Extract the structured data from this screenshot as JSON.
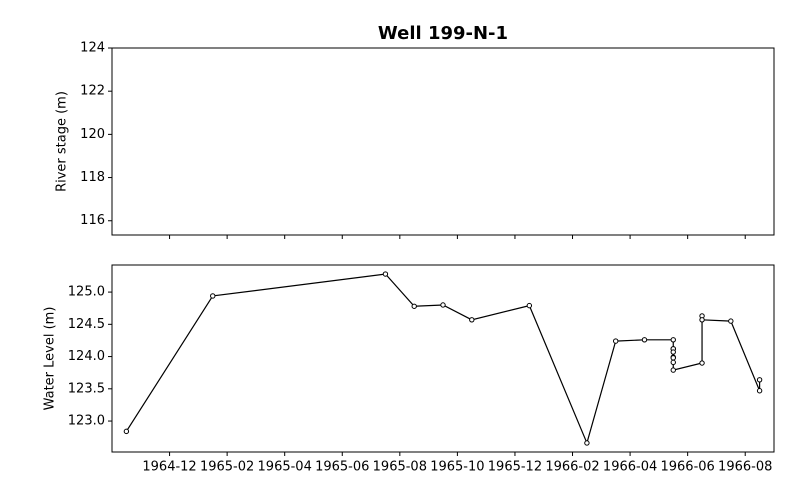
{
  "chart_data": [
    {
      "type": "line",
      "title": "Well 199-N-1",
      "ylabel": "River stage (m)",
      "ylim": [
        115.34,
        124
      ],
      "yticks": [
        116,
        118,
        120,
        122,
        124
      ],
      "series": []
    },
    {
      "type": "line",
      "ylabel": "Water Level (m)",
      "xlim": [
        "1964-10",
        "1966-09"
      ],
      "xticks": [
        "1964-12",
        "1965-02",
        "1965-04",
        "1965-06",
        "1965-08",
        "1965-10",
        "1965-12",
        "1966-02",
        "1966-04",
        "1966-06",
        "1966-08"
      ],
      "ylim": [
        122.52,
        125.42
      ],
      "yticks": [
        {
          "value": 123,
          "label": "123.0"
        },
        {
          "value": 123.5,
          "label": "123.5"
        },
        {
          "value": 124,
          "label": "124.0"
        },
        {
          "value": 124.5,
          "label": "124.5"
        },
        {
          "value": 125,
          "label": "125.0"
        }
      ],
      "x": [
        "1964-10",
        "1965-01",
        "1965-07",
        "1965-08",
        "1965-09",
        "1965-10",
        "1965-12",
        "1966-02",
        "1966-03",
        "1966-04",
        "1966-05",
        "1966-05",
        "1966-05",
        "1966-05",
        "1966-05",
        "1966-05",
        "1966-05",
        "1966-05",
        "1966-06",
        "1966-06",
        "1966-06",
        "1966-07",
        "1966-08",
        "1966-08"
      ],
      "series": [
        {
          "color": "#000000",
          "values": [
            122.84,
            124.94,
            125.28,
            124.78,
            124.8,
            124.57,
            124.79,
            122.66,
            124.24,
            124.26,
            124.26,
            123.99,
            124.12,
            124.12,
            123.91,
            124.07,
            123.98,
            123.79,
            123.9,
            124.63,
            124.57,
            124.55,
            123.47,
            123.64
          ]
        }
      ]
    }
  ]
}
